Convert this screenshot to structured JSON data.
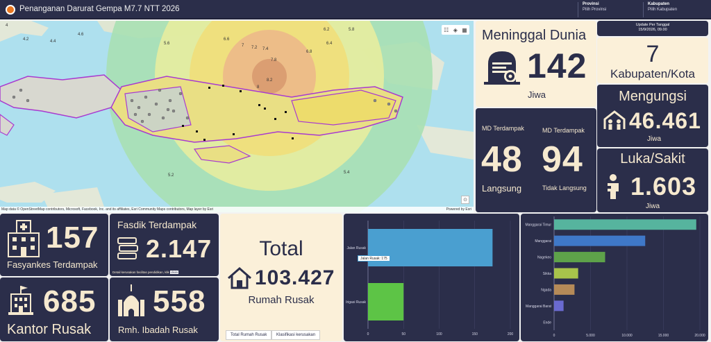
{
  "header": {
    "title": "Penanganan Darurat Gempa M7.7 NTT 2026",
    "provinsi_label": "Provinsi",
    "provinsi_value": "Pilih Provinsi",
    "kabupaten_label": "Kabupaten",
    "kabupaten_value": "Pilih Kabupaten"
  },
  "map": {
    "attribution": "Map data © OpenStreetMap contributors, Microsoft, Facebook, Inc. and its affiliates, Esri Community Maps contributors, Map layer by Esri",
    "powered": "Powered by Esri",
    "magnitudes": [
      "4",
      "4.2",
      "4.6",
      "4.4",
      "5.6",
      "6.6",
      "6.2",
      "5.8",
      "7",
      "7.2",
      "7.4",
      "6.4",
      "6.8",
      "7.8",
      "8.2",
      "8",
      "5.2",
      "5.4"
    ]
  },
  "update": {
    "label": "Update Per Tanggal",
    "value": "15/9/2026, 09.00"
  },
  "meninggal": {
    "title": "Meninggal Dunia",
    "value": "142",
    "unit": "Jiwa"
  },
  "kabupaten": {
    "value": "7",
    "label": "Kabupaten/Kota"
  },
  "mengungsi": {
    "title": "Mengungsi",
    "value": "46.461",
    "unit": "Jiwa"
  },
  "luka": {
    "title": "Luka/Sakit",
    "value": "1.603",
    "unit": "Jiwa"
  },
  "md_langsung": {
    "title": "MD Terdampak",
    "value": "48",
    "label": "Langsung"
  },
  "md_tidak": {
    "title": "MD Terdampak",
    "value": "94",
    "label": "Tidak Langsung"
  },
  "fasyankes": {
    "value": "157",
    "label": "Fasyankes Terdampak"
  },
  "fasdik": {
    "title": "Fasdik Terdampak",
    "value": "2.147",
    "note": "Detail kerusakan fasilitas pendidikan, klik",
    "note_link": "disini"
  },
  "kantor": {
    "value": "685",
    "label": "Kantor Rusak"
  },
  "ibadah": {
    "value": "558",
    "label": "Rmh. Ibadah Rusak"
  },
  "total": {
    "title": "Total",
    "value": "103.427",
    "label": "Rumah Rusak",
    "tab1": "Total Rumah Rusak",
    "tab2": "Klasifikasi kerusakan"
  },
  "colors": {
    "navy": "#2b2e4a",
    "cream": "#fbf0d9",
    "bar_blue": "#4a9fd0",
    "bar_green": "#5dc446"
  },
  "chart_data": [
    {
      "type": "bar",
      "orientation": "horizontal",
      "categories": [
        "Jalan Rusak",
        "Irigasi Rusak"
      ],
      "values": [
        175,
        50
      ],
      "xlim": [
        0,
        200
      ],
      "xticks": [
        "0",
        "50",
        "100",
        "150",
        "200"
      ],
      "tooltip": "Jalan Rusak: 175",
      "colors": [
        "#4a9fd0",
        "#5dc446"
      ]
    },
    {
      "type": "bar",
      "orientation": "horizontal",
      "categories": [
        "Manggarai Timur",
        "Manggarai",
        "Nagekeo",
        "Sikka",
        "Ngada",
        "Manggarai Barat",
        "Ende"
      ],
      "values": [
        19500,
        12500,
        7000,
        3300,
        2800,
        1300,
        0
      ],
      "xlim": [
        0,
        20000
      ],
      "xticks": [
        "0",
        "5.000",
        "10.000",
        "15.000",
        "20.000"
      ],
      "colors": [
        "#56b49e",
        "#3f78c8",
        "#5ea24a",
        "#a8c34b",
        "#b58a58",
        "#6a6ad0",
        "#888888"
      ]
    }
  ]
}
